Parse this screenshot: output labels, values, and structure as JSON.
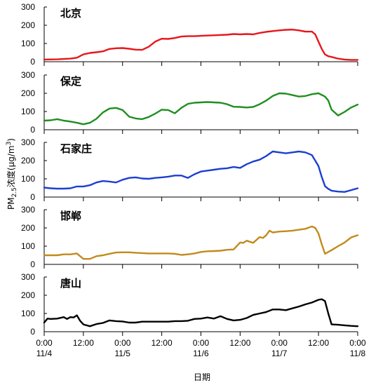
{
  "chart_data": {
    "type": "line",
    "ylabel": "PM2.5浓度(μg/m3)",
    "ylabel_parts": {
      "a": "PM",
      "sub": "2.5",
      "b": "浓度(μg/m",
      "sup": "3",
      "c": ")"
    },
    "xlabel": "日期",
    "x_ticks": [
      {
        "x": 0,
        "line1": "0:00",
        "line2": "11/4"
      },
      {
        "x": 12,
        "line1": "12:00",
        "line2": ""
      },
      {
        "x": 24,
        "line1": "0:00",
        "line2": "11/5"
      },
      {
        "x": 36,
        "line1": "12:00",
        "line2": ""
      },
      {
        "x": 48,
        "line1": "0:00",
        "line2": "11/6"
      },
      {
        "x": 60,
        "line1": "12:00",
        "line2": ""
      },
      {
        "x": 72,
        "line1": "0:00",
        "line2": "11/7"
      },
      {
        "x": 84,
        "line1": "12:00",
        "line2": ""
      },
      {
        "x": 96,
        "line1": "0:00",
        "line2": "11/8"
      }
    ],
    "xlim": [
      0,
      96
    ],
    "x_unit": "hours since 11/4 0:00",
    "ylim": [
      0,
      300
    ],
    "y_ticks": [
      0,
      100,
      200,
      300
    ],
    "panels": [
      {
        "name": "北京",
        "color": "#e8161b",
        "x": [
          0,
          4,
          8,
          10,
          12,
          14,
          16,
          18,
          20,
          22,
          24,
          26,
          28,
          30,
          32,
          34,
          36,
          38,
          40,
          42,
          44,
          46,
          48,
          52,
          56,
          58,
          60,
          62,
          64,
          66,
          68,
          70,
          72,
          74,
          76,
          78,
          80,
          82,
          83,
          84,
          85,
          86,
          87,
          88,
          90,
          92,
          94,
          96
        ],
        "values": [
          12,
          13,
          17,
          22,
          40,
          48,
          52,
          57,
          70,
          74,
          75,
          71,
          66,
          65,
          82,
          110,
          126,
          125,
          130,
          138,
          140,
          140,
          142,
          145,
          148,
          152,
          150,
          152,
          150,
          158,
          164,
          168,
          172,
          175,
          176,
          172,
          165,
          165,
          150,
          110,
          70,
          40,
          30,
          26,
          17,
          12,
          10,
          10
        ]
      },
      {
        "name": "保定",
        "color": "#1f8f1f",
        "x": [
          0,
          2,
          4,
          6,
          8,
          10,
          12,
          14,
          16,
          18,
          20,
          22,
          24,
          26,
          28,
          30,
          32,
          34,
          36,
          38,
          40,
          42,
          44,
          46,
          48,
          50,
          52,
          54,
          56,
          58,
          60,
          62,
          64,
          66,
          68,
          70,
          72,
          74,
          76,
          78,
          80,
          81,
          82,
          84,
          86,
          87,
          88,
          90,
          92,
          94,
          96
        ],
        "values": [
          50,
          52,
          58,
          50,
          45,
          38,
          30,
          38,
          60,
          95,
          116,
          120,
          108,
          72,
          62,
          58,
          70,
          88,
          110,
          108,
          90,
          120,
          142,
          148,
          150,
          152,
          150,
          148,
          140,
          126,
          125,
          122,
          125,
          140,
          160,
          185,
          200,
          198,
          190,
          182,
          185,
          190,
          195,
          200,
          182,
          160,
          110,
          78,
          98,
          122,
          138
        ]
      },
      {
        "name": "石家庄",
        "color": "#1c3fd0",
        "x": [
          0,
          2,
          4,
          6,
          8,
          10,
          12,
          14,
          16,
          18,
          20,
          22,
          24,
          26,
          28,
          30,
          32,
          34,
          36,
          38,
          40,
          42,
          44,
          46,
          48,
          50,
          52,
          54,
          56,
          58,
          60,
          62,
          64,
          66,
          68,
          70,
          72,
          74,
          76,
          78,
          80,
          82,
          84,
          85,
          86,
          87,
          88,
          90,
          92,
          94,
          96
        ],
        "values": [
          52,
          48,
          46,
          46,
          48,
          58,
          58,
          65,
          80,
          88,
          85,
          80,
          95,
          105,
          108,
          102,
          100,
          105,
          108,
          112,
          118,
          118,
          105,
          125,
          140,
          145,
          150,
          155,
          158,
          165,
          160,
          180,
          195,
          205,
          225,
          250,
          245,
          240,
          245,
          250,
          245,
          230,
          170,
          110,
          60,
          45,
          35,
          30,
          28,
          38,
          48
        ]
      },
      {
        "name": "邯郸",
        "color": "#c28a1d",
        "x": [
          0,
          2,
          4,
          6,
          8,
          10,
          12,
          14,
          16,
          18,
          20,
          22,
          24,
          26,
          28,
          30,
          32,
          34,
          36,
          38,
          40,
          42,
          44,
          46,
          48,
          50,
          52,
          54,
          56,
          58,
          60,
          61,
          62,
          64,
          66,
          67,
          68,
          69,
          70,
          72,
          74,
          76,
          78,
          80,
          82,
          83,
          84,
          85,
          86,
          88,
          90,
          92,
          94,
          96
        ],
        "values": [
          50,
          50,
          50,
          55,
          55,
          60,
          30,
          30,
          45,
          50,
          58,
          65,
          66,
          66,
          64,
          62,
          60,
          60,
          60,
          60,
          58,
          52,
          55,
          60,
          68,
          72,
          73,
          75,
          80,
          82,
          120,
          118,
          130,
          118,
          150,
          145,
          160,
          185,
          175,
          180,
          182,
          185,
          190,
          195,
          208,
          200,
          170,
          110,
          58,
          78,
          100,
          120,
          148,
          160
        ]
      },
      {
        "name": "唐山",
        "color": "#000000",
        "x": [
          0,
          1,
          2,
          4,
          6,
          7,
          8,
          9,
          10,
          11,
          12,
          14,
          16,
          18,
          20,
          22,
          24,
          26,
          28,
          30,
          32,
          34,
          36,
          38,
          40,
          42,
          44,
          46,
          48,
          50,
          52,
          54,
          56,
          58,
          60,
          62,
          64,
          66,
          68,
          70,
          72,
          74,
          76,
          78,
          80,
          82,
          84,
          85,
          86,
          87,
          88,
          90,
          92,
          94,
          96
        ],
        "values": [
          50,
          72,
          70,
          72,
          80,
          70,
          80,
          78,
          90,
          60,
          40,
          30,
          42,
          48,
          62,
          58,
          56,
          50,
          50,
          55,
          55,
          55,
          55,
          55,
          58,
          58,
          60,
          70,
          72,
          78,
          72,
          85,
          70,
          62,
          65,
          75,
          92,
          100,
          108,
          122,
          122,
          118,
          128,
          138,
          150,
          160,
          175,
          178,
          168,
          100,
          40,
          38,
          35,
          32,
          30
        ]
      }
    ]
  }
}
